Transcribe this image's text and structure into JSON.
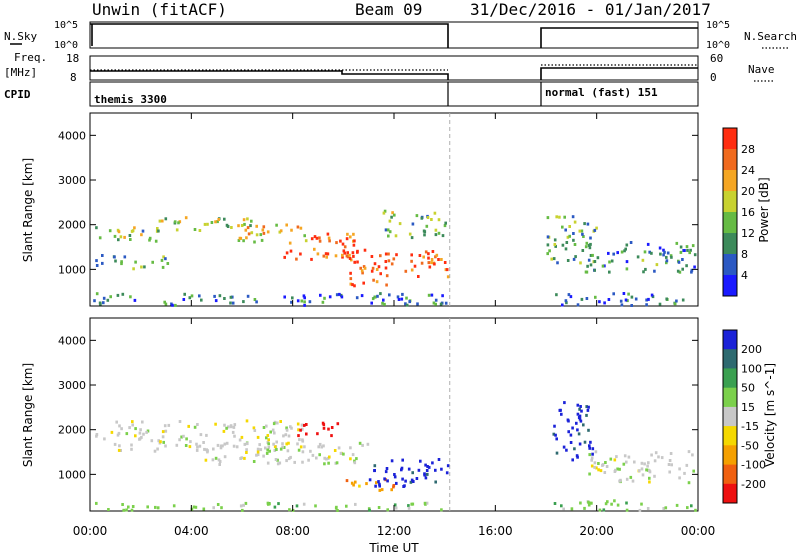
{
  "header": {
    "station": "Unwin (fitACF)",
    "beam": "Beam 09",
    "dates": "31/Dec/2016 - 01/Jan/2017"
  },
  "summary_panels": {
    "nsky_label": "N.Sky",
    "nsky_ticks": [
      "10^5",
      "10^0"
    ],
    "nsky_right_ticks": [
      "10^5",
      "10^0"
    ],
    "nsearch_label": "N.Search",
    "freq_label": "Freq.",
    "freq_unit": "[MHz]",
    "freq_ticks": [
      "18",
      "8"
    ],
    "nave_label": "Nave",
    "nave_ticks": [
      "60",
      "0"
    ],
    "cpid_label": "CPID",
    "cpid_modes": [
      "themis 3300",
      "normal (fast) 151"
    ]
  },
  "chart_data": [
    {
      "type": "heatmap",
      "title": "",
      "xlabel": "Time UT",
      "ylabel": "Slant Range [km]",
      "xticks": [
        "00:00",
        "04:00",
        "08:00",
        "12:00",
        "16:00",
        "20:00",
        "00:00"
      ],
      "xlim_hours": [
        0,
        24
      ],
      "yticks": [
        1000,
        2000,
        3000,
        4000
      ],
      "ylim": [
        180,
        4500
      ],
      "data_gap_hours": [
        14.2,
        18.0
      ],
      "colorbar": {
        "label": "Power [dB]",
        "ticks": [
          "4",
          "8",
          "12",
          "16",
          "20",
          "24",
          "28"
        ],
        "range": [
          0,
          30
        ],
        "colors": [
          "#1a1aff",
          "#2b59c3",
          "#3c8a5a",
          "#66bb44",
          "#c8d230",
          "#f5a623",
          "#f06a1e",
          "#ff2d10"
        ]
      },
      "echo_regions": [
        {
          "t0": 0.2,
          "t1": 2.8,
          "r0": 1600,
          "r1": 1950,
          "level": 0.45
        },
        {
          "t0": 0.2,
          "t1": 3.2,
          "r0": 1000,
          "r1": 1300,
          "level": 0.35
        },
        {
          "t0": 2.5,
          "t1": 6.5,
          "r0": 1800,
          "r1": 2150,
          "level": 0.5
        },
        {
          "t0": 5.5,
          "t1": 8.5,
          "r0": 1600,
          "r1": 2000,
          "level": 0.6
        },
        {
          "t0": 7.5,
          "t1": 10.5,
          "r0": 1200,
          "r1": 1800,
          "level": 0.85
        },
        {
          "t0": 10.0,
          "t1": 12.0,
          "r0": 600,
          "r1": 1500,
          "level": 0.9
        },
        {
          "t0": 12.0,
          "t1": 14.1,
          "r0": 800,
          "r1": 1400,
          "level": 0.85
        },
        {
          "t0": 11.5,
          "t1": 14.0,
          "r0": 1700,
          "r1": 2300,
          "level": 0.45
        },
        {
          "t0": 18.0,
          "t1": 20.0,
          "r0": 1100,
          "r1": 2200,
          "level": 0.4
        },
        {
          "t0": 19.5,
          "t1": 23.9,
          "r0": 900,
          "r1": 1600,
          "level": 0.3
        },
        {
          "t0": 18.0,
          "t1": 23.9,
          "r0": 180,
          "r1": 450,
          "level": 0.2
        },
        {
          "t0": 0.1,
          "t1": 14.1,
          "r0": 180,
          "r1": 450,
          "level": 0.25
        }
      ]
    },
    {
      "type": "heatmap",
      "title": "",
      "xlabel": "Time UT",
      "ylabel": "Slant Range [km]",
      "xticks": [
        "00:00",
        "04:00",
        "08:00",
        "12:00",
        "16:00",
        "20:00",
        "00:00"
      ],
      "xlim_hours": [
        0,
        24
      ],
      "yticks": [
        1000,
        2000,
        3000,
        4000
      ],
      "ylim": [
        180,
        4500
      ],
      "data_gap_hours": [
        14.2,
        18.0
      ],
      "colorbar": {
        "label": "Velocity [m s^-1]",
        "ticks": [
          "200",
          "100",
          "50",
          "15",
          "-15",
          "-50",
          "-100",
          "-200"
        ],
        "colors": [
          "#1b22d8",
          "#2e6a70",
          "#3aa050",
          "#7bd04b",
          "#c8c8c8",
          "#f5d800",
          "#f5a000",
          "#f06010",
          "#ee1010"
        ]
      },
      "echo_regions": [
        {
          "t0": 0.2,
          "t1": 8.5,
          "r0": 1500,
          "r1": 2200,
          "level": 4
        },
        {
          "t0": 4.0,
          "t1": 11.0,
          "r0": 1200,
          "r1": 1700,
          "level": 4
        },
        {
          "t0": 8.0,
          "t1": 10.0,
          "r0": 1850,
          "r1": 2150,
          "level": 8
        },
        {
          "t0": 10.0,
          "t1": 12.0,
          "r0": 600,
          "r1": 900,
          "level": 6
        },
        {
          "t0": 11.0,
          "t1": 12.2,
          "r0": 700,
          "r1": 1300,
          "level": 0
        },
        {
          "t0": 12.2,
          "t1": 14.1,
          "r0": 700,
          "r1": 1400,
          "level": 0
        },
        {
          "t0": 18.2,
          "t1": 19.8,
          "r0": 1300,
          "r1": 2600,
          "level": 0
        },
        {
          "t0": 19.5,
          "t1": 23.9,
          "r0": 800,
          "r1": 1500,
          "level": 4
        },
        {
          "t0": 0.1,
          "t1": 14.1,
          "r0": 180,
          "r1": 350,
          "level": 3
        },
        {
          "t0": 18.0,
          "t1": 23.9,
          "r0": 180,
          "r1": 400,
          "level": 3
        }
      ]
    }
  ]
}
